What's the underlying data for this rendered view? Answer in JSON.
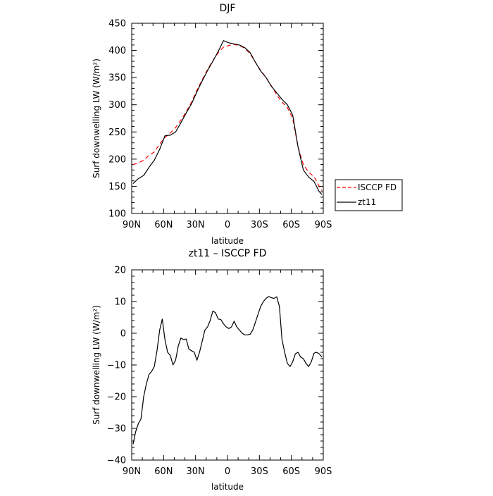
{
  "chart_data": [
    {
      "type": "line",
      "title": "DJF",
      "xlabel": "latitude",
      "ylabel": "Surf downwelling LW (W/m²)",
      "xlim": [
        -90,
        90
      ],
      "ylim": [
        100,
        450
      ],
      "xticks": [
        -90,
        -60,
        -30,
        0,
        30,
        60,
        90
      ],
      "xtick_labels": [
        "90N",
        "60N",
        "30N",
        "0",
        "30S",
        "60S",
        "90S"
      ],
      "yticks": [
        100,
        150,
        200,
        250,
        300,
        350,
        400,
        450
      ],
      "legend_position": "outside-right",
      "series": [
        {
          "name": "ISCCP FD",
          "color": "#ff0000",
          "style": "dashed",
          "x": [
            -88.75,
            -83.75,
            -78.75,
            -73.75,
            -68.75,
            -63.75,
            -58.75,
            -53.75,
            -48.75,
            -43.75,
            -38.75,
            -33.75,
            -28.75,
            -23.75,
            -18.75,
            -13.75,
            -8.75,
            -3.75,
            1.25,
            6.25,
            11.25,
            16.25,
            21.25,
            26.25,
            31.25,
            36.25,
            41.25,
            46.25,
            51.25,
            56.25,
            61.25,
            66.25,
            71.25,
            76.25,
            81.25,
            86.25,
            88.75
          ],
          "y": [
            190,
            193,
            198,
            207,
            213,
            228,
            240,
            248,
            258,
            272,
            287,
            305,
            327,
            346,
            365,
            381,
            396,
            406,
            409,
            411,
            409,
            404,
            394,
            378,
            363,
            350,
            335,
            318,
            305,
            295,
            275,
            223,
            190,
            176,
            168,
            150,
            142
          ]
        },
        {
          "name": "zt11",
          "color": "#000000",
          "style": "solid",
          "x": [
            -88.75,
            -83.75,
            -78.75,
            -73.75,
            -68.75,
            -63.75,
            -58.75,
            -53.75,
            -48.75,
            -43.75,
            -38.75,
            -33.75,
            -28.75,
            -23.75,
            -18.75,
            -13.75,
            -8.75,
            -3.75,
            1.25,
            6.25,
            11.25,
            16.25,
            21.25,
            26.25,
            31.25,
            36.25,
            41.25,
            46.25,
            51.25,
            56.25,
            61.25,
            66.25,
            71.25,
            76.25,
            81.25,
            86.25,
            88.75
          ],
          "y": [
            155,
            164,
            170,
            185,
            198,
            218,
            243,
            244,
            250,
            267,
            285,
            302,
            324,
            344,
            363,
            380,
            398,
            418,
            414,
            412,
            410,
            405,
            396,
            378,
            362,
            350,
            334,
            322,
            310,
            300,
            281,
            223,
            180,
            167,
            159,
            140,
            135
          ]
        }
      ]
    },
    {
      "type": "line",
      "title": "zt11 – ISCCP FD",
      "xlabel": "latitude",
      "ylabel": "Surf downwelling LW (W/m²)",
      "xlim": [
        -90,
        90
      ],
      "ylim": [
        -40,
        20
      ],
      "xticks": [
        -90,
        -60,
        -30,
        0,
        30,
        60,
        90
      ],
      "xtick_labels": [
        "90N",
        "60N",
        "30N",
        "0",
        "30S",
        "60S",
        "90S"
      ],
      "yticks": [
        -40,
        -30,
        -20,
        -10,
        0,
        10,
        20
      ],
      "series": [
        {
          "color": "#000000",
          "style": "solid",
          "x": [
            -88.75,
            -86.25,
            -83.75,
            -81.25,
            -78.75,
            -76.25,
            -73.75,
            -71.25,
            -68.75,
            -66.25,
            -63.75,
            -61.25,
            -58.75,
            -56.25,
            -53.75,
            -51.25,
            -48.75,
            -46.25,
            -43.75,
            -41.25,
            -38.75,
            -36.25,
            -33.75,
            -31.25,
            -28.75,
            -26.25,
            -23.75,
            -21.25,
            -18.75,
            -16.25,
            -13.75,
            -11.25,
            -8.75,
            -6.25,
            -3.75,
            -1.25,
            1.25,
            3.75,
            6.25,
            8.75,
            11.25,
            13.75,
            16.25,
            18.75,
            21.25,
            23.75,
            26.25,
            28.75,
            31.25,
            33.75,
            36.25,
            38.75,
            41.25,
            43.75,
            46.25,
            48.75,
            51.25,
            53.75,
            56.25,
            58.75,
            61.25,
            63.75,
            66.25,
            68.75,
            71.25,
            73.75,
            76.25,
            78.75,
            81.25,
            83.75,
            86.25,
            88.75
          ],
          "y": [
            -35,
            -31,
            -28.5,
            -27,
            -20,
            -16,
            -13,
            -12,
            -10.5,
            -5.5,
            1,
            4.5,
            -2,
            -6,
            -7,
            -10,
            -8.5,
            -4,
            -1.5,
            -2,
            -1.8,
            -5,
            -5.5,
            -6,
            -8.5,
            -6,
            -2.5,
            1,
            2,
            4,
            7,
            6.5,
            4.5,
            4.3,
            3,
            2,
            1.5,
            2,
            3.8,
            2,
            1,
            0,
            -0.5,
            -0.5,
            -0.3,
            1,
            3.5,
            6,
            8.5,
            10,
            11,
            11.6,
            11.2,
            11,
            11.5,
            8.5,
            -2,
            -6,
            -9.5,
            -10.5,
            -9,
            -6.5,
            -6,
            -7.5,
            -8,
            -9.5,
            -10.5,
            -9,
            -6.3,
            -6,
            -6.5,
            -7.5
          ]
        }
      ]
    }
  ]
}
